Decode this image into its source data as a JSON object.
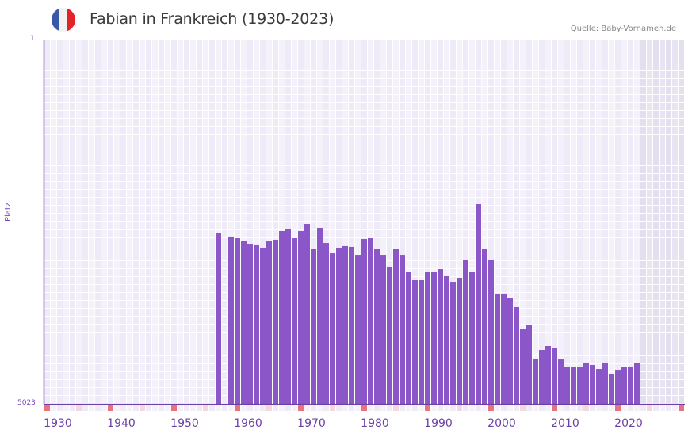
{
  "header": {
    "title": "Fabian in Frankreich (1930-2023)",
    "source": "Quelle: Baby-Vornamen.de",
    "flag": {
      "name": "france-flag-icon",
      "colors": [
        "#3a57a8",
        "#f2f2f2",
        "#e3232c"
      ]
    }
  },
  "axis": {
    "ylabel": "Platz",
    "ytick_top": "1",
    "ytick_bottom": "5023"
  },
  "colors": {
    "bar": "#8b56c8",
    "grid_a": "#efeaf8",
    "grid_b": "#f4f1fb",
    "future_a": "#e3dfee",
    "future_b": "#e8e4f1",
    "axis": "#6b3fa6",
    "decade_marker": "#e8737b",
    "half_decade_marker": "#f5d7df",
    "marker_base_a": "#efeaf8",
    "marker_base_b": "#f4f1fb"
  },
  "chart_data": {
    "type": "bar",
    "title": "Fabian in Frankreich (1930-2023)",
    "xlabel": "",
    "ylabel": "Platz",
    "y_reversed": true,
    "ylim": [
      1,
      5023
    ],
    "xlim": [
      1930,
      2030
    ],
    "data_range": [
      1930,
      2023
    ],
    "xticks": [
      1930,
      1940,
      1950,
      1960,
      1970,
      1980,
      1990,
      2000,
      2010,
      2020
    ],
    "grid": true,
    "x": [
      1957,
      1959,
      1960,
      1961,
      1962,
      1963,
      1964,
      1965,
      1966,
      1967,
      1968,
      1969,
      1970,
      1971,
      1972,
      1973,
      1974,
      1975,
      1976,
      1977,
      1978,
      1979,
      1980,
      1981,
      1982,
      1983,
      1984,
      1985,
      1986,
      1987,
      1988,
      1989,
      1990,
      1991,
      1992,
      1993,
      1994,
      1995,
      1996,
      1997,
      1998,
      1999,
      2000,
      2001,
      2002,
      2003,
      2004,
      2005,
      2006,
      2007,
      2008,
      2009,
      2010,
      2011,
      2012,
      2013,
      2014,
      2015,
      2016,
      2017,
      2018,
      2019,
      2020,
      2021,
      2022,
      2023
    ],
    "values": [
      2665,
      2719,
      2741,
      2774,
      2818,
      2828,
      2872,
      2785,
      2763,
      2643,
      2610,
      2730,
      2643,
      2545,
      2894,
      2599,
      2807,
      2949,
      2872,
      2850,
      2861,
      2971,
      2752,
      2741,
      2894,
      2971,
      3134,
      2883,
      2971,
      3200,
      3320,
      3320,
      3200,
      3200,
      3167,
      3254,
      3342,
      3287,
      3036,
      3200,
      2272,
      2894,
      3036,
      3505,
      3505,
      3571,
      3691,
      3997,
      3931,
      4401,
      4281,
      4226,
      4259,
      4412,
      4510,
      4521,
      4510,
      4455,
      4488,
      4543,
      4455,
      4608,
      4554,
      4510,
      4510,
      4466
    ]
  }
}
